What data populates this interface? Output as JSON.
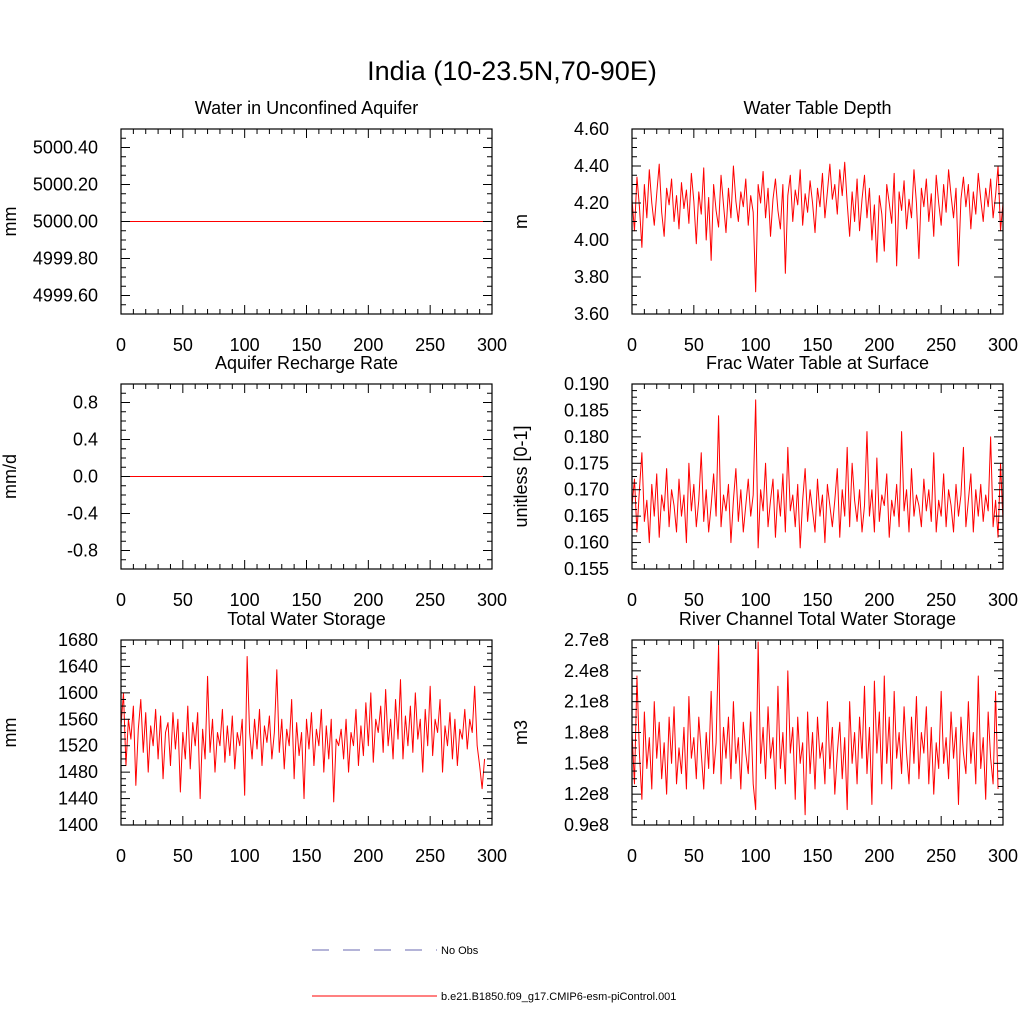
{
  "figure": {
    "title": "India (10-23.5N,70-90E)"
  },
  "legend": {
    "entries": [
      {
        "label": "No Obs",
        "color": "#6a6ab0",
        "style": "dashed"
      },
      {
        "label": "b.e21.B1850.f09_g17.CMIP6-esm-piControl.001",
        "color": "#ff0000",
        "style": "solid"
      }
    ]
  },
  "chart_data": [
    {
      "type": "line",
      "title": "Water in Unconfined Aquifer",
      "xlabel": "",
      "ylabel": "mm",
      "xlim": [
        0,
        300
      ],
      "ylim": [
        4999.5,
        5000.5
      ],
      "xticks": [
        0,
        50,
        100,
        150,
        200,
        250,
        300
      ],
      "xtick_labels": [
        "0",
        "50",
        "100",
        "150",
        "200",
        "250",
        "300"
      ],
      "yticks": [
        4999.6,
        4999.8,
        5000.0,
        5000.2,
        5000.4
      ],
      "ytick_labels": [
        "4999.60",
        "4999.80",
        "5000.00",
        "5000.20",
        "5000.40"
      ],
      "series": [
        {
          "color": "#ff0000",
          "x": [
            0,
            300
          ],
          "values": [
            5000.0,
            5000.0
          ]
        }
      ]
    },
    {
      "type": "line",
      "title": "Water Table Depth",
      "xlabel": "",
      "ylabel": "m",
      "xlim": [
        0,
        300
      ],
      "ylim": [
        3.6,
        4.6
      ],
      "xticks": [
        0,
        50,
        100,
        150,
        200,
        250,
        300
      ],
      "xtick_labels": [
        "0",
        "50",
        "100",
        "150",
        "200",
        "250",
        "300"
      ],
      "yticks": [
        3.6,
        3.8,
        4.0,
        4.2,
        4.4,
        4.6
      ],
      "ytick_labels": [
        "3.60",
        "3.80",
        "4.00",
        "4.20",
        "4.40",
        "4.60"
      ],
      "series": [
        {
          "color": "#ff0000",
          "x0": 0,
          "dx": 2,
          "values": [
            4.22,
            4.05,
            4.34,
            4.18,
            3.96,
            4.3,
            4.12,
            4.38,
            4.2,
            4.08,
            4.25,
            4.41,
            4.15,
            4.02,
            4.28,
            4.19,
            4.33,
            4.1,
            4.24,
            4.06,
            4.31,
            4.17,
            4.27,
            4.09,
            4.36,
            4.21,
            3.98,
            4.26,
            4.14,
            4.39,
            4.0,
            4.23,
            3.89,
            4.3,
            4.16,
            4.07,
            4.35,
            4.19,
            4.04,
            4.28,
            4.12,
            4.4,
            4.21,
            4.1,
            4.26,
            4.18,
            4.33,
            4.08,
            4.24,
            4.15,
            3.72,
            4.3,
            4.2,
            4.37,
            4.12,
            4.28,
            4.02,
            4.22,
            4.33,
            4.16,
            4.06,
            4.3,
            3.82,
            4.24,
            4.35,
            4.1,
            4.27,
            4.19,
            4.38,
            4.08,
            4.25,
            4.15,
            4.32,
            4.2,
            4.04,
            4.28,
            4.18,
            4.36,
            4.12,
            4.26,
            4.41,
            4.22,
            4.3,
            4.14,
            4.38,
            4.24,
            4.42,
            4.2,
            4.02,
            4.26,
            4.1,
            4.33,
            4.05,
            4.22,
            4.35,
            4.12,
            4.28,
            4.0,
            4.19,
            3.88,
            4.24,
            4.14,
            3.94,
            4.3,
            4.2,
            4.09,
            4.36,
            3.86,
            4.26,
            4.16,
            4.32,
            4.06,
            4.22,
            4.12,
            4.38,
            4.2,
            3.9,
            4.28,
            4.18,
            4.33,
            4.1,
            4.25,
            4.02,
            4.35,
            4.2,
            4.08,
            4.3,
            4.15,
            4.38,
            4.24,
            4.12,
            4.28,
            3.86,
            4.22,
            4.34,
            4.18,
            4.3,
            4.06,
            4.26,
            4.14,
            4.36,
            4.22,
            4.1,
            4.28,
            4.18,
            4.33,
            4.12,
            4.24,
            4.4,
            4.05,
            4.2
          ]
        }
      ]
    },
    {
      "type": "line",
      "title": "Aquifer Recharge Rate",
      "xlabel": "",
      "ylabel": "mm/d",
      "xlim": [
        0,
        300
      ],
      "ylim": [
        -1.0,
        1.0
      ],
      "xticks": [
        0,
        50,
        100,
        150,
        200,
        250,
        300
      ],
      "xtick_labels": [
        "0",
        "50",
        "100",
        "150",
        "200",
        "250",
        "300"
      ],
      "yticks": [
        -0.8,
        -0.4,
        0.0,
        0.4,
        0.8
      ],
      "ytick_labels": [
        "-0.8",
        "-0.4",
        "0.0",
        "0.4",
        "0.8"
      ],
      "series": [
        {
          "color": "#ff0000",
          "x": [
            0,
            300
          ],
          "values": [
            0.0,
            0.0
          ]
        }
      ]
    },
    {
      "type": "line",
      "title": "Frac Water Table at Surface",
      "xlabel": "",
      "ylabel": "unitless [0-1]",
      "xlim": [
        0,
        300
      ],
      "ylim": [
        0.155,
        0.19
      ],
      "xticks": [
        0,
        50,
        100,
        150,
        200,
        250,
        300
      ],
      "xtick_labels": [
        "0",
        "50",
        "100",
        "150",
        "200",
        "250",
        "300"
      ],
      "yticks": [
        0.155,
        0.16,
        0.165,
        0.17,
        0.175,
        0.18,
        0.185,
        0.19
      ],
      "ytick_labels": [
        "0.155",
        "0.160",
        "0.165",
        "0.170",
        "0.175",
        "0.180",
        "0.185",
        "0.190"
      ],
      "series": [
        {
          "color": "#ff0000",
          "x0": 0,
          "dx": 2,
          "values": [
            0.167,
            0.172,
            0.162,
            0.17,
            0.177,
            0.164,
            0.168,
            0.16,
            0.171,
            0.165,
            0.173,
            0.161,
            0.169,
            0.166,
            0.174,
            0.163,
            0.17,
            0.167,
            0.162,
            0.172,
            0.165,
            0.169,
            0.16,
            0.175,
            0.166,
            0.171,
            0.163,
            0.168,
            0.177,
            0.164,
            0.17,
            0.162,
            0.167,
            0.173,
            0.165,
            0.184,
            0.163,
            0.169,
            0.166,
            0.171,
            0.16,
            0.168,
            0.174,
            0.164,
            0.17,
            0.162,
            0.167,
            0.172,
            0.165,
            0.169,
            0.187,
            0.159,
            0.17,
            0.166,
            0.175,
            0.163,
            0.168,
            0.172,
            0.161,
            0.17,
            0.165,
            0.173,
            0.162,
            0.178,
            0.166,
            0.169,
            0.163,
            0.171,
            0.159,
            0.168,
            0.174,
            0.164,
            0.17,
            0.166,
            0.162,
            0.172,
            0.165,
            0.169,
            0.16,
            0.171,
            0.167,
            0.163,
            0.168,
            0.174,
            0.161,
            0.17,
            0.165,
            0.178,
            0.163,
            0.175,
            0.168,
            0.164,
            0.17,
            0.162,
            0.167,
            0.181,
            0.165,
            0.17,
            0.162,
            0.176,
            0.164,
            0.169,
            0.167,
            0.173,
            0.161,
            0.168,
            0.165,
            0.171,
            0.163,
            0.181,
            0.166,
            0.17,
            0.162,
            0.174,
            0.165,
            0.169,
            0.167,
            0.163,
            0.172,
            0.166,
            0.17,
            0.164,
            0.177,
            0.162,
            0.168,
            0.165,
            0.173,
            0.163,
            0.17,
            0.167,
            0.162,
            0.171,
            0.165,
            0.169,
            0.178,
            0.163,
            0.168,
            0.173,
            0.162,
            0.17,
            0.165,
            0.171,
            0.164,
            0.169,
            0.166,
            0.18,
            0.163,
            0.168,
            0.161,
            0.175,
            0.164
          ]
        }
      ]
    },
    {
      "type": "line",
      "title": "Total Water Storage",
      "xlabel": "",
      "ylabel": "mm",
      "xlim": [
        0,
        300
      ],
      "ylim": [
        1400,
        1680
      ],
      "xticks": [
        0,
        50,
        100,
        150,
        200,
        250,
        300
      ],
      "xtick_labels": [
        "0",
        "50",
        "100",
        "150",
        "200",
        "250",
        "300"
      ],
      "yticks": [
        1400,
        1440,
        1480,
        1520,
        1560,
        1600,
        1640,
        1680
      ],
      "ytick_labels": [
        "1400",
        "1440",
        "1480",
        "1520",
        "1560",
        "1600",
        "1640",
        "1680"
      ],
      "series": [
        {
          "color": "#ff0000",
          "x0": 0,
          "dx": 2,
          "values": [
            1550,
            1600,
            1490,
            1560,
            1530,
            1580,
            1460,
            1545,
            1590,
            1510,
            1570,
            1480,
            1550,
            1520,
            1575,
            1500,
            1565,
            1470,
            1540,
            1555,
            1490,
            1570,
            1515,
            1560,
            1450,
            1540,
            1500,
            1580,
            1485,
            1555,
            1520,
            1570,
            1440,
            1545,
            1500,
            1625,
            1510,
            1560,
            1480,
            1540,
            1520,
            1575,
            1495,
            1550,
            1505,
            1565,
            1485,
            1540,
            1520,
            1560,
            1445,
            1655,
            1540,
            1500,
            1560,
            1515,
            1575,
            1490,
            1550,
            1525,
            1565,
            1500,
            1540,
            1635,
            1510,
            1560,
            1485,
            1545,
            1520,
            1590,
            1470,
            1555,
            1505,
            1540,
            1440,
            1560,
            1515,
            1570,
            1490,
            1545,
            1520,
            1575,
            1480,
            1550,
            1500,
            1560,
            1435,
            1530,
            1520,
            1545,
            1500,
            1560,
            1480,
            1540,
            1520,
            1575,
            1490,
            1550,
            1505,
            1585,
            1520,
            1600,
            1495,
            1560,
            1540,
            1580,
            1510,
            1605,
            1520,
            1560,
            1500,
            1590,
            1530,
            1620,
            1500,
            1565,
            1520,
            1580,
            1510,
            1600,
            1530,
            1560,
            1480,
            1575,
            1520,
            1610,
            1505,
            1560,
            1540,
            1590,
            1480,
            1550,
            1520,
            1570,
            1500,
            1560,
            1490,
            1545,
            1530,
            1575,
            1515,
            1560,
            1540,
            1610,
            1520,
            1490,
            1455,
            1500
          ]
        }
      ]
    },
    {
      "type": "line",
      "title": "River Channel Total Water Storage",
      "xlabel": "",
      "ylabel": "m3",
      "xlim": [
        0,
        300
      ],
      "ylim": [
        90000000.0,
        270000000.0
      ],
      "xticks": [
        0,
        50,
        100,
        150,
        200,
        250,
        300
      ],
      "xtick_labels": [
        "0",
        "50",
        "100",
        "150",
        "200",
        "250",
        "300"
      ],
      "yticks": [
        90000000.0,
        120000000.0,
        150000000.0,
        180000000.0,
        210000000.0,
        240000000.0,
        270000000.0
      ],
      "ytick_labels": [
        "0.9e8",
        "1.2e8",
        "1.5e8",
        "1.8e8",
        "2.1e8",
        "2.4e8",
        "2.7e8"
      ],
      "series": [
        {
          "color": "#ff0000",
          "x0": 0,
          "dx": 2,
          "values": [
            180000000.0,
            130000000.0,
            235000000.0,
            160000000.0,
            115000000.0,
            200000000.0,
            145000000.0,
            175000000.0,
            125000000.0,
            210000000.0,
            155000000.0,
            190000000.0,
            135000000.0,
            170000000.0,
            120000000.0,
            195000000.0,
            150000000.0,
            205000000.0,
            130000000.0,
            165000000.0,
            140000000.0,
            185000000.0,
            125000000.0,
            215000000.0,
            155000000.0,
            175000000.0,
            135000000.0,
            195000000.0,
            160000000.0,
            125000000.0,
            180000000.0,
            145000000.0,
            220000000.0,
            140000000.0,
            170000000.0,
            265000000.0,
            130000000.0,
            185000000.0,
            155000000.0,
            195000000.0,
            135000000.0,
            210000000.0,
            150000000.0,
            175000000.0,
            125000000.0,
            190000000.0,
            160000000.0,
            140000000.0,
            200000000.0,
            130000000.0,
            105000000.0,
            268000000.0,
            150000000.0,
            185000000.0,
            135000000.0,
            205000000.0,
            155000000.0,
            175000000.0,
            125000000.0,
            225000000.0,
            145000000.0,
            180000000.0,
            130000000.0,
            240000000.0,
            160000000.0,
            185000000.0,
            115000000.0,
            195000000.0,
            150000000.0,
            170000000.0,
            100000000.0,
            200000000.0,
            140000000.0,
            180000000.0,
            125000000.0,
            195000000.0,
            155000000.0,
            170000000.0,
            130000000.0,
            210000000.0,
            145000000.0,
            185000000.0,
            120000000.0,
            160000000.0,
            190000000.0,
            135000000.0,
            175000000.0,
            105000000.0,
            210000000.0,
            150000000.0,
            180000000.0,
            130000000.0,
            195000000.0,
            155000000.0,
            225000000.0,
            140000000.0,
            185000000.0,
            110000000.0,
            230000000.0,
            160000000.0,
            200000000.0,
            130000000.0,
            235000000.0,
            150000000.0,
            195000000.0,
            125000000.0,
            220000000.0,
            155000000.0,
            180000000.0,
            140000000.0,
            205000000.0,
            160000000.0,
            130000000.0,
            195000000.0,
            150000000.0,
            215000000.0,
            135000000.0,
            180000000.0,
            160000000.0,
            205000000.0,
            130000000.0,
            185000000.0,
            120000000.0,
            170000000.0,
            145000000.0,
            220000000.0,
            150000000.0,
            175000000.0,
            135000000.0,
            200000000.0,
            155000000.0,
            185000000.0,
            110000000.0,
            195000000.0,
            160000000.0,
            140000000.0,
            210000000.0,
            150000000.0,
            180000000.0,
            130000000.0,
            235000000.0,
            145000000.0,
            175000000.0,
            115000000.0,
            200000000.0,
            155000000.0,
            130000000.0,
            220000000.0,
            125000000.0
          ]
        }
      ]
    }
  ]
}
